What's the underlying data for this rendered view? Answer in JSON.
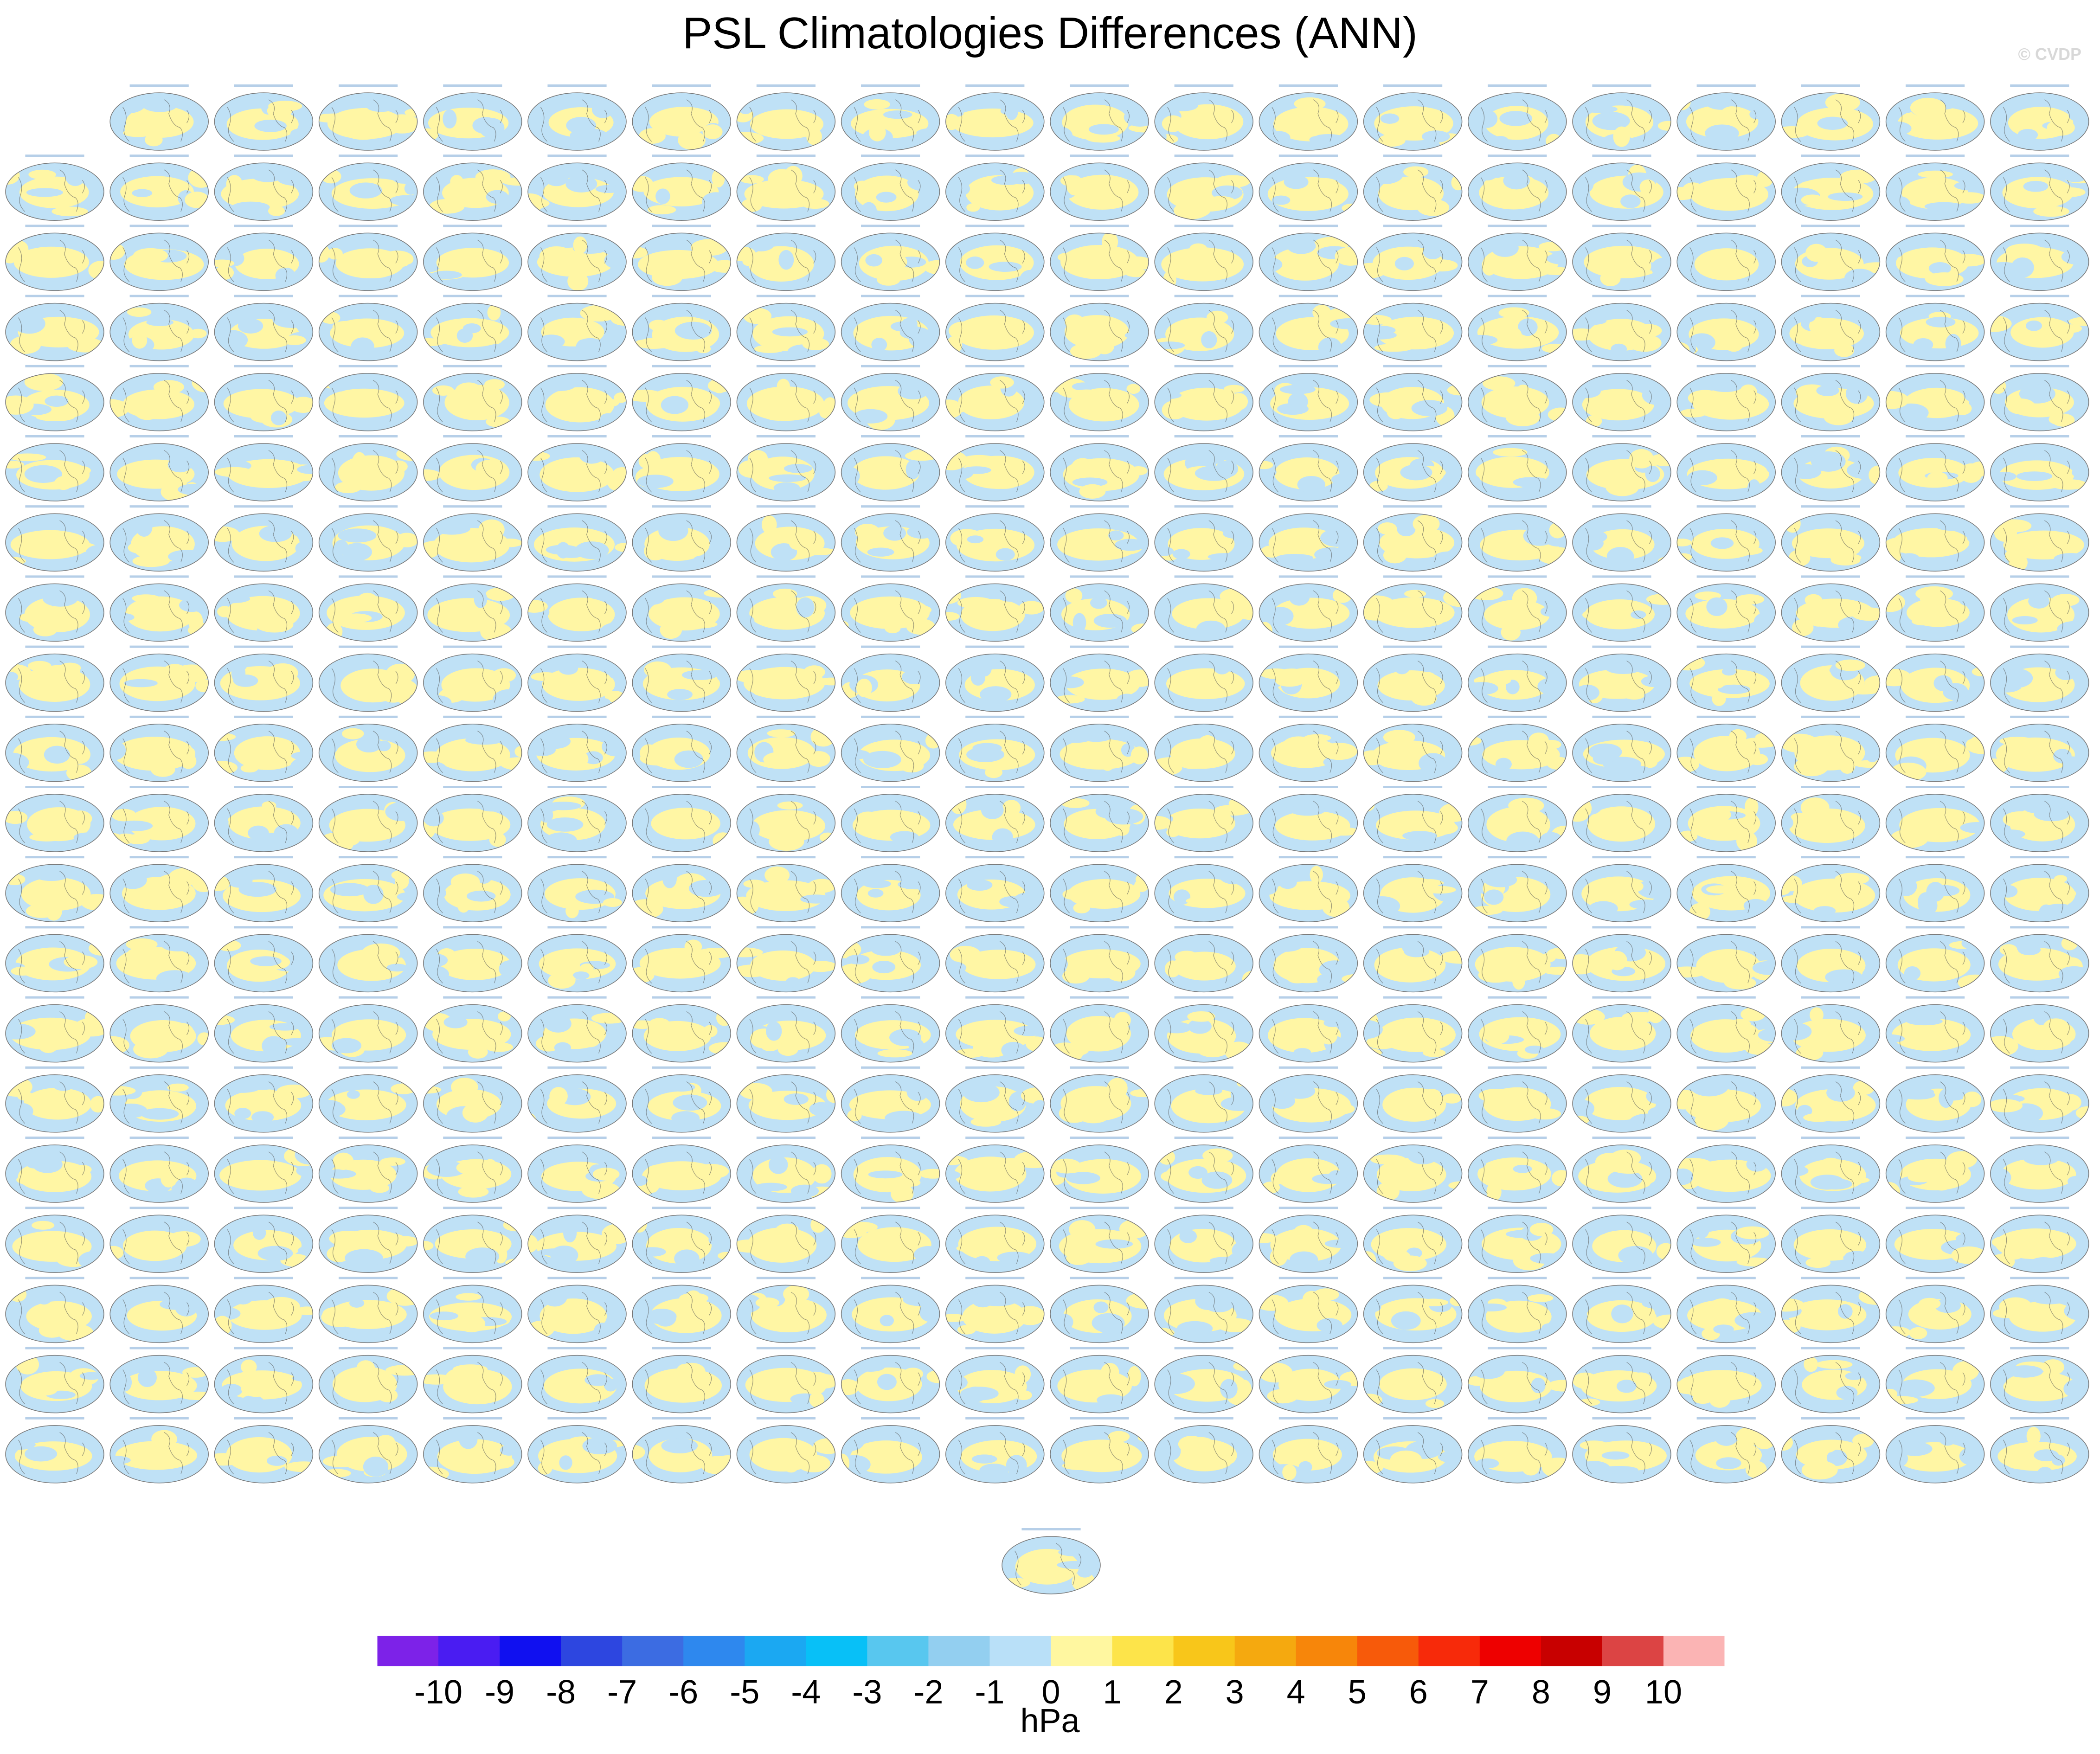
{
  "title": "PSL Climatologies Differences (ANN)",
  "watermark": "© CVDP",
  "units": "hPa",
  "chart_data": {
    "type": "heatmap",
    "title": "PSL Climatologies Differences (ANN)",
    "description_kind": "panel-grid of global map differences",
    "grid": {
      "columns": 20,
      "full_rows": 20,
      "first_row_panels": 19,
      "last_row_panels": 1
    },
    "panel_count": 400,
    "colorbar": {
      "units": "hPa",
      "tick_labels": [
        "-10",
        "-9",
        "-8",
        "-7",
        "-6",
        "-5",
        "-4",
        "-3",
        "-2",
        "-1",
        "0",
        "1",
        "2",
        "3",
        "4",
        "5",
        "6",
        "7",
        "8",
        "9",
        "10"
      ],
      "colors": [
        "#7d22e8",
        "#4a1cf2",
        "#1010f0",
        "#2d46e0",
        "#3c6ce2",
        "#2e88ee",
        "#1ba8f2",
        "#08c0f7",
        "#58c7ef",
        "#93cff0",
        "#b9e0f8",
        "#fff7a0",
        "#fde44a",
        "#f8c61a",
        "#f5a90f",
        "#f7860a",
        "#f75a0a",
        "#f72a0a",
        "#ee0000",
        "#c80000",
        "#dc4444",
        "#fbb4b4"
      ]
    }
  }
}
